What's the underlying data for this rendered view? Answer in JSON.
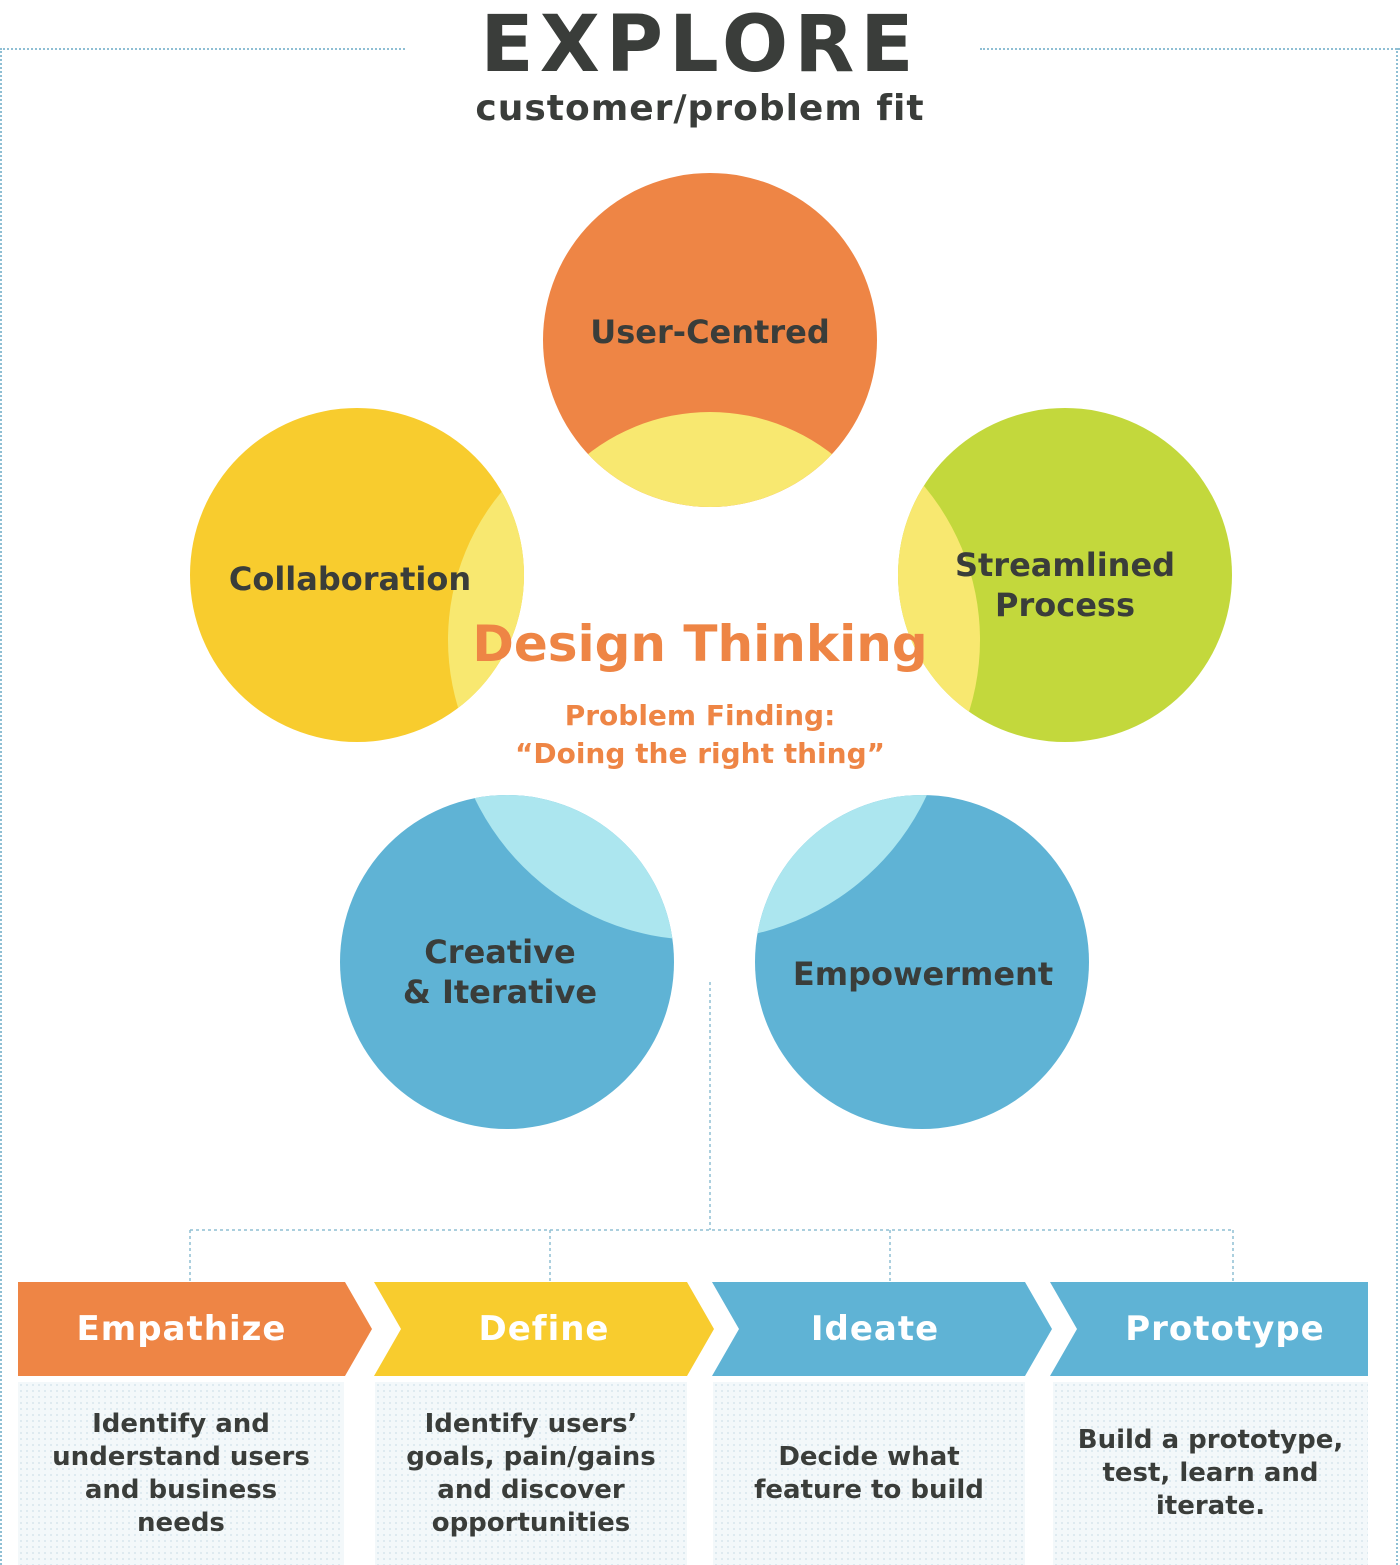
{
  "header": {
    "title": "EXPLORE",
    "subtitle": "customer/problem fit"
  },
  "center": {
    "title": "Design Thinking",
    "subtitle_line1": "Problem Finding:",
    "subtitle_line2": "“Doing the right thing”"
  },
  "principles": [
    {
      "line1": "User-Centred",
      "line2": "",
      "color": "#ee8545",
      "overlap_color": "#f8e870"
    },
    {
      "line1": "Collaboration",
      "line2": "",
      "color": "#f8cc2e",
      "overlap_color": "#f8e870"
    },
    {
      "line1": "Streamlined",
      "line2": "Process",
      "color": "#c3d83c",
      "overlap_color": "#f8e870"
    },
    {
      "line1": "Creative",
      "line2": "& Iterative",
      "color": "#5fb3d5",
      "overlap_color": "#ace6ef"
    },
    {
      "line1": "Empowerment",
      "line2": "",
      "color": "#5fb3d5",
      "overlap_color": "#ace6ef"
    }
  ],
  "steps": [
    {
      "label": "Empathize",
      "color": "#ee8545",
      "desc": [
        "Identify and",
        "understand users",
        "and business",
        "needs"
      ]
    },
    {
      "label": "Define",
      "color": "#f8cc2e",
      "desc": [
        "Identify users’",
        "goals, pain/gains",
        "and discover",
        "opportunities"
      ]
    },
    {
      "label": "Ideate",
      "color": "#5fb3d5",
      "desc": [
        "Decide what",
        "feature to build"
      ]
    },
    {
      "label": "Prototype",
      "color": "#5fb3d5",
      "desc": [
        "Build a prototype,",
        "test, learn and",
        "iterate."
      ]
    }
  ]
}
